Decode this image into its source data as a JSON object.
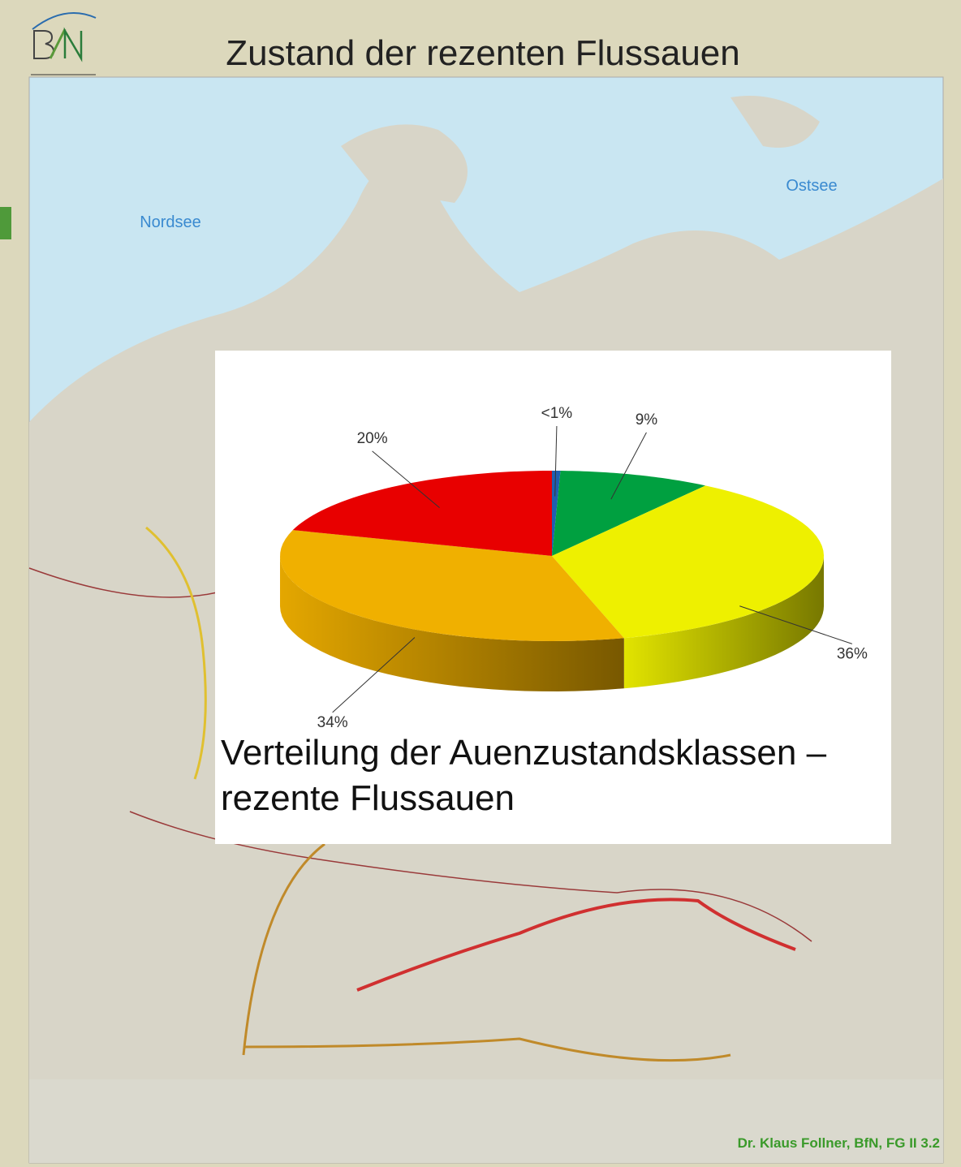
{
  "header": {
    "title": "Zustand der rezenten Flussauen"
  },
  "map": {
    "labels": [
      "Nordsee",
      "Ostsee"
    ]
  },
  "chart_data": {
    "type": "pie",
    "values": [
      0.5,
      9,
      36,
      34,
      20
    ],
    "value_labels": [
      "<1%",
      "9%",
      "36%",
      "34%",
      "20%"
    ],
    "colors": [
      "#1f5fb0",
      "#00a040",
      "#eef000",
      "#f0b000",
      "#e80000"
    ],
    "caption": "Verteilung der Auenzustandsklassen – rezente Flussauen"
  },
  "footer": "Dr. Klaus Follner, BfN, FG II 3.2"
}
